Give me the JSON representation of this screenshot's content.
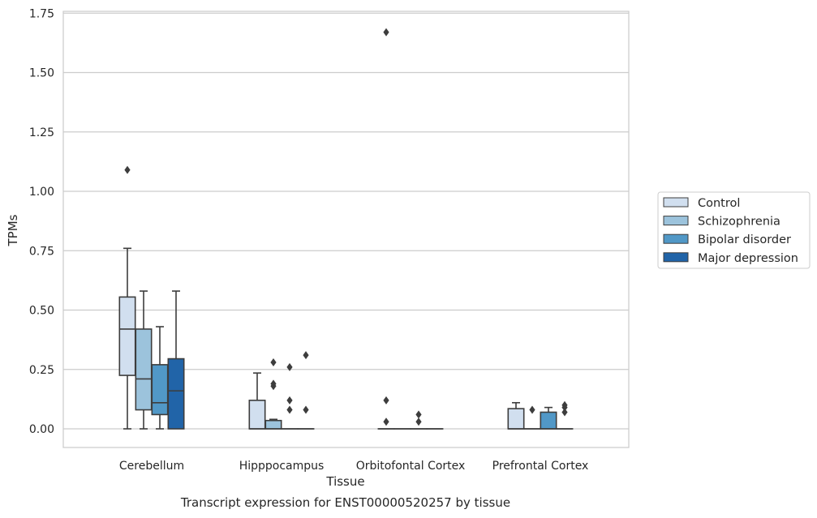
{
  "chart_data": {
    "type": "box",
    "title": "",
    "xlabel": "Tissue",
    "ylabel": "TPMs",
    "caption": "Transcript expression for ENST00000520257 by tissue",
    "ylim": [
      -0.08,
      1.755
    ],
    "yticks": [
      "0.00",
      "0.25",
      "0.50",
      "0.75",
      "1.00",
      "1.25",
      "1.50",
      "1.75"
    ],
    "grid": "horizontal",
    "legend_position": "right",
    "categories": [
      "Cerebellum",
      "Hipppocampus",
      "Orbitofontal Cortex",
      "Prefrontal Cortex"
    ],
    "series": [
      {
        "name": "Control",
        "color": "#d1dfef",
        "boxes": [
          {
            "q1": 0.225,
            "median": 0.42,
            "q3": 0.555,
            "whisker_low": 0.0,
            "whisker_high": 0.76,
            "outliers": [
              1.09
            ]
          },
          {
            "q1": 0.0,
            "median": 0.0,
            "q3": 0.12,
            "whisker_low": 0.0,
            "whisker_high": 0.235,
            "outliers": []
          },
          {
            "q1": 0.0,
            "median": 0.0,
            "q3": 0.0,
            "whisker_low": 0.0,
            "whisker_high": 0.0,
            "outliers": [
              0.12,
              0.03,
              1.67
            ]
          },
          {
            "q1": 0.0,
            "median": 0.0,
            "q3": 0.085,
            "whisker_low": 0.0,
            "whisker_high": 0.11,
            "outliers": []
          }
        ]
      },
      {
        "name": "Schizophrenia",
        "color": "#9cc3dc",
        "boxes": [
          {
            "q1": 0.08,
            "median": 0.21,
            "q3": 0.42,
            "whisker_low": 0.0,
            "whisker_high": 0.58,
            "outliers": []
          },
          {
            "q1": 0.0,
            "median": 0.0,
            "q3": 0.035,
            "whisker_low": 0.0,
            "whisker_high": 0.04,
            "outliers": [
              0.28,
              0.19,
              0.18
            ]
          },
          {
            "q1": 0.0,
            "median": 0.0,
            "q3": 0.0,
            "whisker_low": 0.0,
            "whisker_high": 0.0,
            "outliers": []
          },
          {
            "q1": 0.0,
            "median": 0.0,
            "q3": 0.0,
            "whisker_low": 0.0,
            "whisker_high": 0.0,
            "outliers": [
              0.08
            ]
          }
        ]
      },
      {
        "name": "Bipolar disorder",
        "color": "#5198c7",
        "boxes": [
          {
            "q1": 0.06,
            "median": 0.11,
            "q3": 0.27,
            "whisker_low": 0.0,
            "whisker_high": 0.43,
            "outliers": []
          },
          {
            "q1": 0.0,
            "median": 0.0,
            "q3": 0.0,
            "whisker_low": 0.0,
            "whisker_high": 0.0,
            "outliers": [
              0.26,
              0.12,
              0.08
            ]
          },
          {
            "q1": 0.0,
            "median": 0.0,
            "q3": 0.0,
            "whisker_low": 0.0,
            "whisker_high": 0.0,
            "outliers": [
              0.06,
              0.03
            ]
          },
          {
            "q1": 0.0,
            "median": 0.0,
            "q3": 0.07,
            "whisker_low": 0.0,
            "whisker_high": 0.09,
            "outliers": []
          }
        ]
      },
      {
        "name": "Major depression",
        "color": "#2164a8",
        "boxes": [
          {
            "q1": 0.0,
            "median": 0.16,
            "q3": 0.295,
            "whisker_low": 0.0,
            "whisker_high": 0.58,
            "outliers": []
          },
          {
            "q1": 0.0,
            "median": 0.0,
            "q3": 0.0,
            "whisker_low": 0.0,
            "whisker_high": 0.0,
            "outliers": [
              0.31,
              0.08
            ]
          },
          {
            "q1": 0.0,
            "median": 0.0,
            "q3": 0.0,
            "whisker_low": 0.0,
            "whisker_high": 0.0,
            "outliers": []
          },
          {
            "q1": 0.0,
            "median": 0.0,
            "q3": 0.0,
            "whisker_low": 0.0,
            "whisker_high": 0.0,
            "outliers": [
              0.1,
              0.09,
              0.07
            ]
          }
        ]
      }
    ]
  }
}
